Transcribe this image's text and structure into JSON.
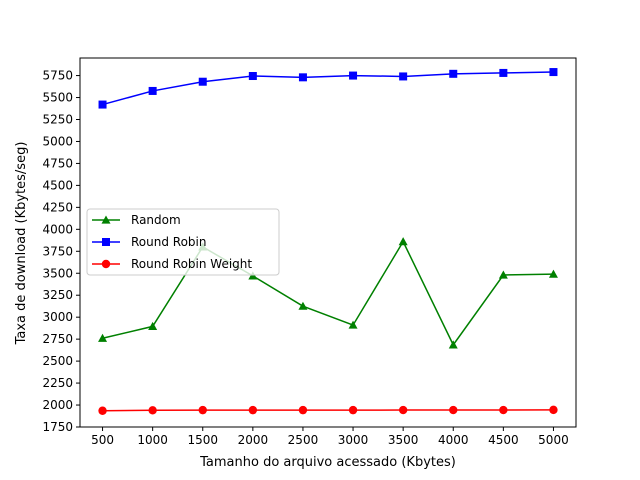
{
  "chart_data": {
    "type": "line",
    "title": "",
    "xlabel": "Tamanho do arquivo acessado (Kbytes)",
    "ylabel": "Taxa de download (Kbytes/seg)",
    "x": [
      500,
      1000,
      1500,
      2000,
      2500,
      3000,
      3500,
      4000,
      4500,
      5000
    ],
    "x_ticks": [
      "500",
      "1000",
      "1500",
      "2000",
      "2500",
      "3000",
      "3500",
      "4000",
      "4500",
      "5000"
    ],
    "xlim": [
      275,
      5225
    ],
    "y_ticks": [
      "1750",
      "2000",
      "2250",
      "2500",
      "2750",
      "3000",
      "3250",
      "3500",
      "3750",
      "4000",
      "4250",
      "4500",
      "4750",
      "5000",
      "5250",
      "5500",
      "5750"
    ],
    "ylim": [
      1750,
      5950
    ],
    "grid": false,
    "legend_position": "center-left",
    "series": [
      {
        "name": "Random",
        "color": "#008000",
        "marker": "triangle",
        "values": [
          2760,
          2895,
          3800,
          3470,
          3125,
          2910,
          3860,
          2685,
          3480,
          3490
        ]
      },
      {
        "name": "Round Robin",
        "color": "#0000ff",
        "marker": "square",
        "values": [
          5420,
          5575,
          5680,
          5745,
          5730,
          5750,
          5740,
          5770,
          5780,
          5790
        ]
      },
      {
        "name": "Round Robin Weight",
        "color": "#ff0000",
        "marker": "circle",
        "values": [
          1935,
          1940,
          1942,
          1942,
          1942,
          1942,
          1943,
          1943,
          1943,
          1945
        ]
      }
    ]
  }
}
